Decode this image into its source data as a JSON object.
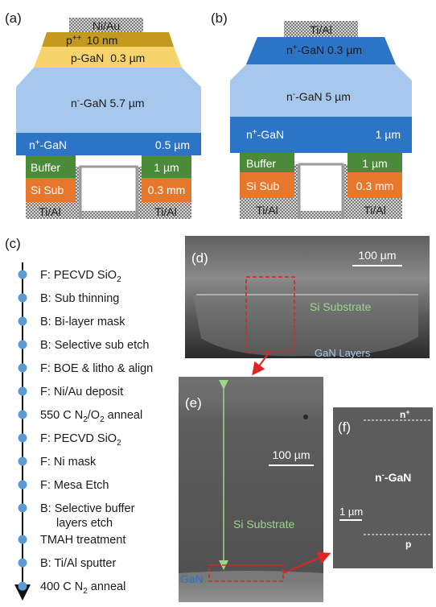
{
  "panel_a": {
    "letter": "(a)",
    "contact_top": "Ni/Au",
    "p_plus_a": "p",
    "p_plus_sup": "++",
    "p_plus_b": "10 nm",
    "p_gan_a": "p-GaN",
    "p_gan_b": "0.3 µm",
    "n_minus_a": "n",
    "n_minus_sup": "-",
    "n_minus_b": "-GaN  5.7 µm",
    "n_plus_a": "n",
    "n_plus_sup": "+",
    "n_plus_b": "-GaN",
    "n_plus_thk": "0.5 µm",
    "buffer": "Buffer",
    "buffer_thk": "1 µm",
    "sisub": "Si Sub",
    "sisub_thk": "0.3 mm",
    "contact_bl": "Ti/Al",
    "contact_br": "Ti/Al"
  },
  "panel_b": {
    "letter": "(b)",
    "contact_top": "Ti/Al",
    "n_plus_top_a": "n",
    "n_plus_top_sup": "+",
    "n_plus_top_b": "-GaN  0.3 µm",
    "n_minus_a": "n",
    "n_minus_sup": "-",
    "n_minus_b": "-GaN   5 µm",
    "n_plus_a": "n",
    "n_plus_sup": "+",
    "n_plus_b": "-GaN",
    "n_plus_thk": "1 µm",
    "buffer": "Buffer",
    "buffer_thk": "1 µm",
    "sisub": "Si Sub",
    "sisub_thk": "0.3 mm",
    "contact_bl": "Ti/Al",
    "contact_br": "Ti/Al"
  },
  "panel_c": {
    "letter": "(c)",
    "steps": [
      {
        "text": "F: PECVD SiO",
        "sub": "2"
      },
      {
        "text": "B: Sub thinning"
      },
      {
        "text": "B: Bi-layer mask"
      },
      {
        "text": "B: Selective sub etch"
      },
      {
        "text": "F: BOE & litho & align"
      },
      {
        "text": "F: Ni/Au deposit"
      },
      {
        "text": "550 C N",
        "sub": "2",
        "rest": "/O",
        "sub2": "2",
        "rest2": " anneal"
      },
      {
        "text": "F: PECVD SiO",
        "sub": "2"
      },
      {
        "text": "F: Ni mask"
      },
      {
        "text": "F: Mesa Etch"
      },
      {
        "text": "B: Selective buffer",
        "line2": "layers etch"
      },
      {
        "text": "TMAH treatment"
      },
      {
        "text": "B: Ti/Al sputter"
      },
      {
        "text": "400 C N",
        "sub": "2",
        "rest": " anneal"
      }
    ]
  },
  "panel_d": {
    "letter": "(d)",
    "scale": "100 µm",
    "label_substrate": "Si Substrate",
    "label_gan": "GaN Layers"
  },
  "panel_e": {
    "letter": "(e)",
    "scale": "100 µm",
    "label_substrate": "Si Substrate",
    "label_gan": "GaN"
  },
  "panel_f": {
    "letter": "(f)",
    "label_nplus_a": "n",
    "label_nplus_sup": "+",
    "label_nminus_a": "n",
    "label_nminus_sup": "-",
    "label_nminus_b": "-GaN",
    "scale": "1 µm",
    "label_p": "p"
  },
  "colors": {
    "ni_au": "#c9c9c9",
    "p_plus": "#c39a1e",
    "p_gan": "#f7d36b",
    "n_minus": "#a6c8ec",
    "n_plus": "#2b74c6",
    "buffer": "#4c8a3b",
    "si_sub": "#e8772e",
    "sem_label_green": "#9bd68c",
    "sem_label_blue": "#a8c8ee",
    "marker_red": "#e02424",
    "flow_dot": "#5b9bd5"
  }
}
